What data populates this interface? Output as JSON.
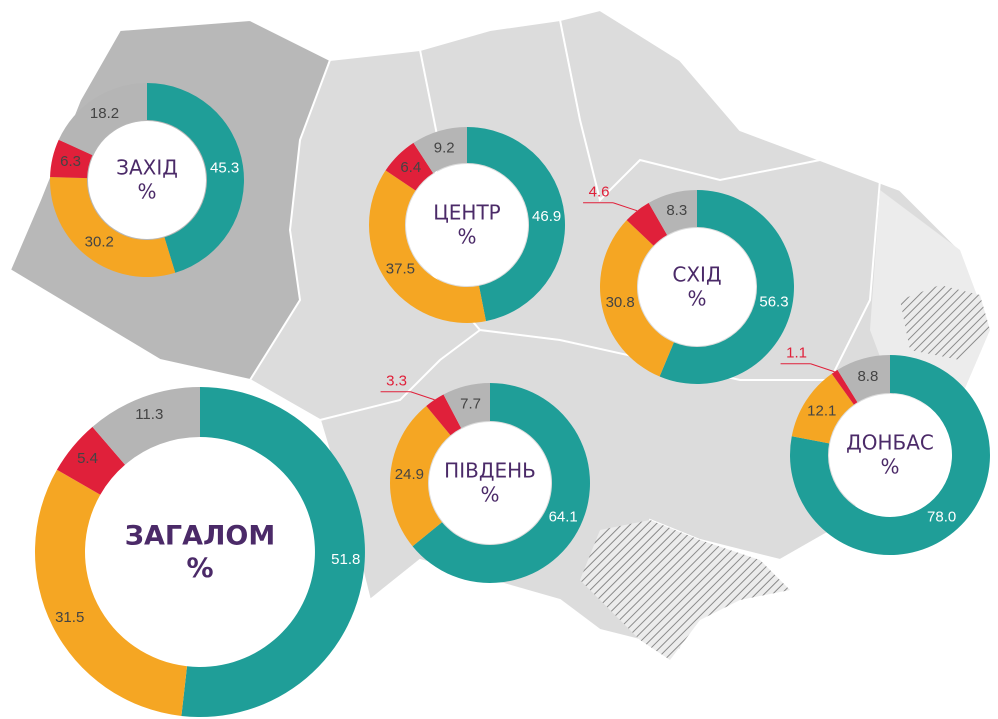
{
  "chart_data": [
    {
      "type": "donut",
      "title": "ЗАХІД",
      "center_label": "%",
      "values": [
        45.3,
        30.2,
        6.3,
        18.2
      ],
      "value_labels": [
        "45.3",
        "30.2",
        "6.3",
        "18.2"
      ],
      "colors": [
        "#1f9e98",
        "#f5a623",
        "#e0203a",
        "#b5b5b5"
      ]
    },
    {
      "type": "donut",
      "title": "ЦЕНТР",
      "center_label": "%",
      "values": [
        46.9,
        37.5,
        6.4,
        9.2
      ],
      "value_labels": [
        "46.9",
        "37.5",
        "6.4",
        "9.2"
      ],
      "colors": [
        "#1f9e98",
        "#f5a623",
        "#e0203a",
        "#b5b5b5"
      ]
    },
    {
      "type": "donut",
      "title": "СХІД",
      "center_label": "%",
      "values": [
        56.3,
        30.8,
        4.6,
        8.3
      ],
      "value_labels": [
        "56.3",
        "30.8",
        "4.6",
        "8.3"
      ],
      "colors": [
        "#1f9e98",
        "#f5a623",
        "#e0203a",
        "#b5b5b5"
      ]
    },
    {
      "type": "donut",
      "title": "ПІВДЕНЬ",
      "center_label": "%",
      "values": [
        64.1,
        24.9,
        3.3,
        7.7
      ],
      "value_labels": [
        "64.1",
        "24.9",
        "3.3",
        "7.7"
      ],
      "colors": [
        "#1f9e98",
        "#f5a623",
        "#e0203a",
        "#b5b5b5"
      ]
    },
    {
      "type": "donut",
      "title": "ДОНБАС",
      "center_label": "%",
      "values": [
        78.0,
        12.1,
        1.1,
        8.8
      ],
      "value_labels": [
        "78.0",
        "12.1",
        "1.1",
        "8.8"
      ],
      "colors": [
        "#1f9e98",
        "#f5a623",
        "#e0203a",
        "#b5b5b5"
      ]
    },
    {
      "type": "donut",
      "title": "ЗАГАЛОМ",
      "center_label": "%",
      "values": [
        51.8,
        31.5,
        5.4,
        11.3
      ],
      "value_labels": [
        "51.8",
        "31.5",
        "5.4",
        "11.3"
      ],
      "colors": [
        "#1f9e98",
        "#f5a623",
        "#e0203a",
        "#b5b5b5"
      ]
    }
  ]
}
